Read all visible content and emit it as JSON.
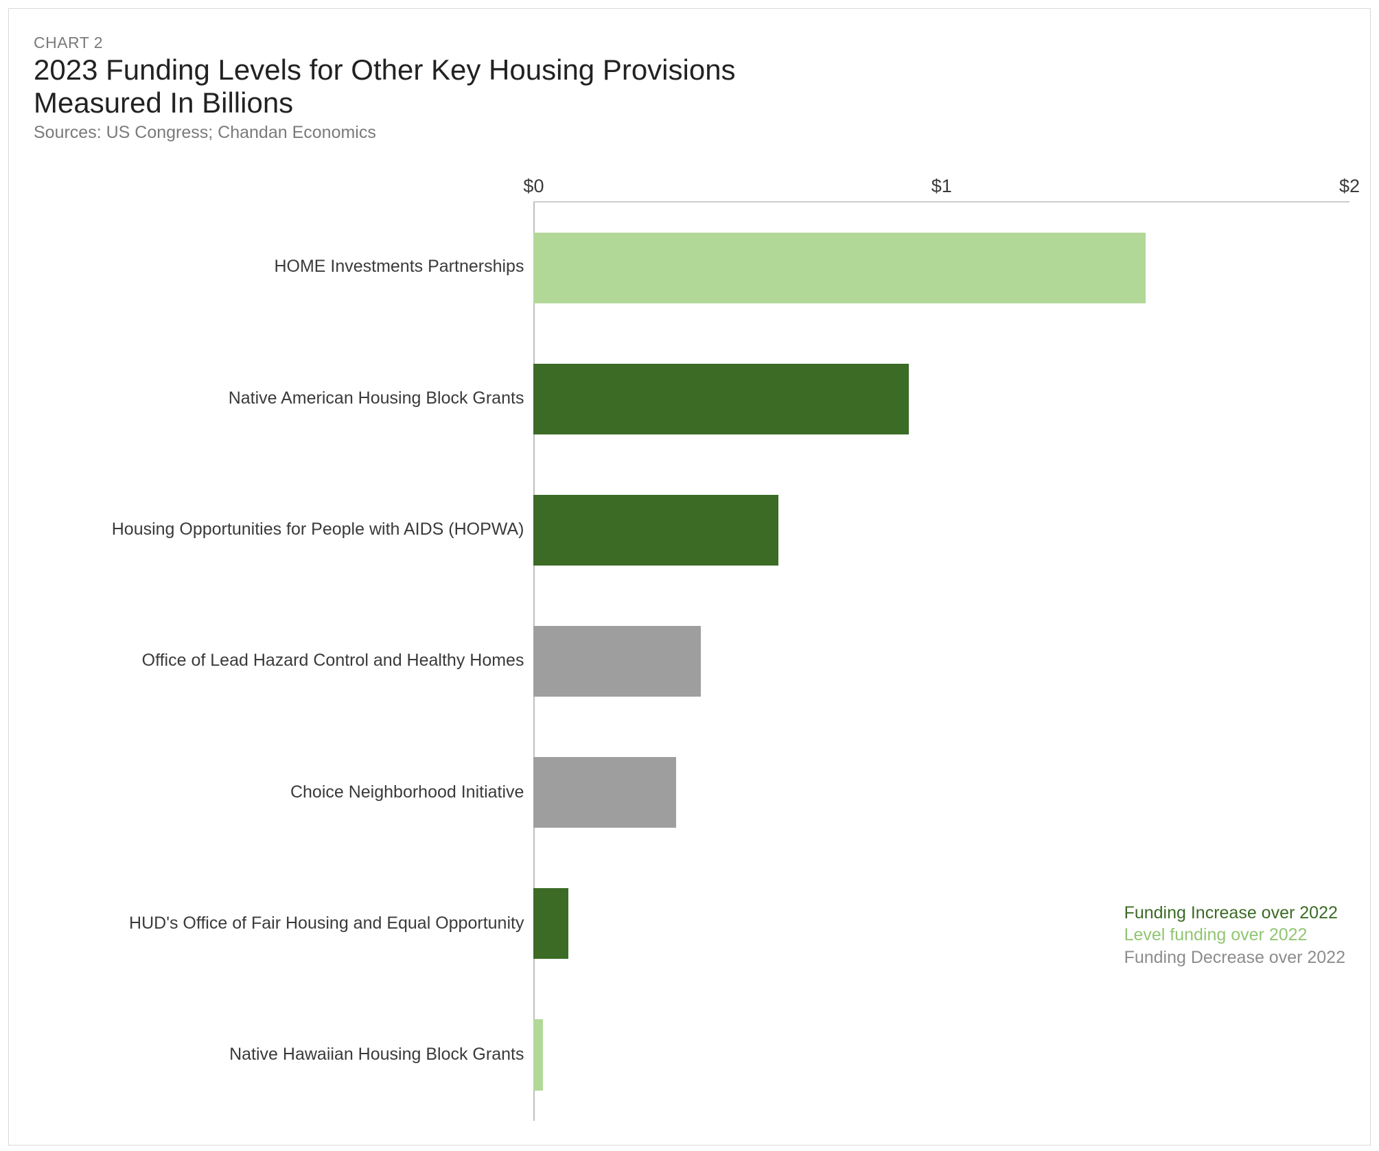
{
  "chart_label": "CHART 2",
  "title_line1": "2023 Funding Levels for Other Key Housing Provisions",
  "title_line2": "Measured In Billions",
  "subtitle": "Sources: US Congress; Chandan Economics",
  "chart": {
    "type": "horizontal-bar",
    "background_color": "#ffffff",
    "border_color": "#d9d9d9",
    "axis_line_color": "#cccccc",
    "zero_line_color": "#bfbfbf",
    "label_color": "#3a3a3a",
    "label_fontsize": 25,
    "xlim": [
      0,
      2
    ],
    "x_ticks": [
      {
        "value": 0,
        "label": "$0"
      },
      {
        "value": 1,
        "label": "$1"
      },
      {
        "value": 2,
        "label": "$2"
      }
    ],
    "bar_height_ratio": 0.54,
    "categories": [
      {
        "label": "HOME Investments Partnerships",
        "value": 1.5,
        "color": "#b2d898"
      },
      {
        "label": "Native American Housing Block Grants",
        "value": 0.92,
        "color": "#3b6b25"
      },
      {
        "label": "Housing Opportunities for People with AIDS (HOPWA)",
        "value": 0.6,
        "color": "#3b6b25"
      },
      {
        "label": "Office of Lead Hazard Control and Healthy Homes",
        "value": 0.41,
        "color": "#9e9e9e"
      },
      {
        "label": "Choice Neighborhood Initiative",
        "value": 0.35,
        "color": "#9e9e9e"
      },
      {
        "label": "HUD's Office of Fair Housing and Equal Opportunity",
        "value": 0.085,
        "color": "#3b6b25"
      },
      {
        "label": "Native Hawaiian Housing Block Grants",
        "value": 0.022,
        "color": "#b2d898"
      }
    ]
  },
  "legend": {
    "position_bottom_pct": 15.5,
    "items": [
      {
        "label": "Funding Increase over 2022",
        "color": "#3b6b25"
      },
      {
        "label": "Level funding over 2022",
        "color": "#91c573"
      },
      {
        "label": "Funding Decrease over 2022",
        "color": "#8c8c8c"
      }
    ]
  }
}
